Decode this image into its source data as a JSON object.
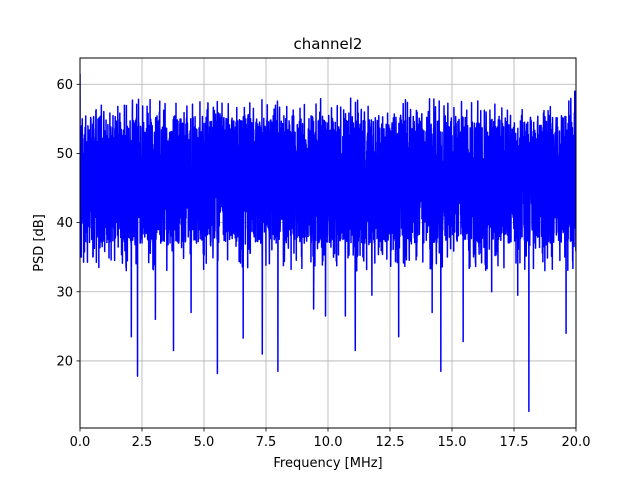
{
  "chart_data": {
    "type": "line",
    "title": "channel2",
    "xlabel": "Frequency [MHz]",
    "ylabel": "PSD [dB]",
    "xlim": [
      0,
      20
    ],
    "ylim": [
      10.3,
      63.8
    ],
    "grid": true,
    "xticks": [
      0.0,
      2.5,
      5.0,
      7.5,
      10.0,
      12.5,
      15.0,
      17.5,
      20.0
    ],
    "xtick_labels": [
      "0.0",
      "2.5",
      "5.0",
      "7.5",
      "10.0",
      "12.5",
      "15.0",
      "17.5",
      "20.0"
    ],
    "yticks": [
      20,
      30,
      40,
      50,
      60
    ],
    "ytick_labels": [
      "20",
      "30",
      "40",
      "50",
      "60"
    ],
    "series": [
      {
        "color": "#0000ff",
        "band_envelope": {
          "typical_min": 37,
          "typical_max": 55.5,
          "peak_max": 58
        },
        "x": [
          0.0,
          0.05,
          2.07,
          2.32,
          3.04,
          3.77,
          4.48,
          5.54,
          6.58,
          7.35,
          7.98,
          8.55,
          9.42,
          9.9,
          10.7,
          11.1,
          11.77,
          12.85,
          14.2,
          14.55,
          15.45,
          16.6,
          17.65,
          18.1,
          19.6,
          19.95
        ],
        "y": [
          61.5,
          35,
          23.5,
          17.8,
          26,
          21.5,
          27,
          18.2,
          23.3,
          21,
          18.5,
          43.5,
          27.5,
          26.5,
          26.5,
          21.5,
          29.5,
          23.5,
          27,
          18.5,
          22.8,
          30,
          29.5,
          12.7,
          24,
          59
        ]
      }
    ]
  }
}
